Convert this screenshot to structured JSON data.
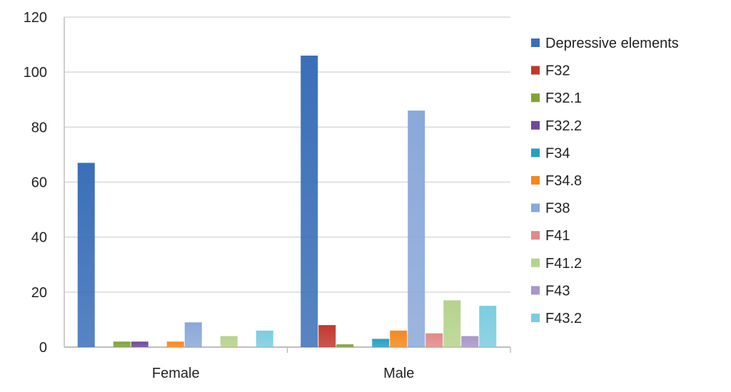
{
  "chart_data": {
    "type": "bar",
    "title": "",
    "xlabel": "",
    "ylabel": "",
    "ylim": [
      0,
      120
    ],
    "yticks": [
      "0",
      "20",
      "40",
      "60",
      "80",
      "100",
      "120"
    ],
    "grid": true,
    "legend_position": "right",
    "categories": [
      "Female",
      "Male"
    ],
    "series": [
      {
        "name": "Depressive elements",
        "color": "#3a6fb8",
        "values": [
          67,
          106
        ]
      },
      {
        "name": "F32",
        "color": "#c0392f",
        "values": [
          0,
          8
        ]
      },
      {
        "name": "F32.1",
        "color": "#7fa33a",
        "values": [
          2,
          1
        ]
      },
      {
        "name": "F32.2",
        "color": "#6e4a9a",
        "values": [
          2,
          0
        ]
      },
      {
        "name": "F34",
        "color": "#2a9fbf",
        "values": [
          0,
          3
        ]
      },
      {
        "name": "F34.8",
        "color": "#f5881f",
        "values": [
          2,
          6
        ]
      },
      {
        "name": "F38",
        "color": "#8aa8d8",
        "values": [
          9,
          86
        ]
      },
      {
        "name": "F41",
        "color": "#e08a88",
        "values": [
          0,
          5
        ]
      },
      {
        "name": "F41.2",
        "color": "#b5d38d",
        "values": [
          4,
          17
        ]
      },
      {
        "name": "F43",
        "color": "#a996c8",
        "values": [
          0,
          4
        ]
      },
      {
        "name": "F43.2",
        "color": "#7ccce0",
        "values": [
          6,
          15
        ]
      }
    ]
  }
}
